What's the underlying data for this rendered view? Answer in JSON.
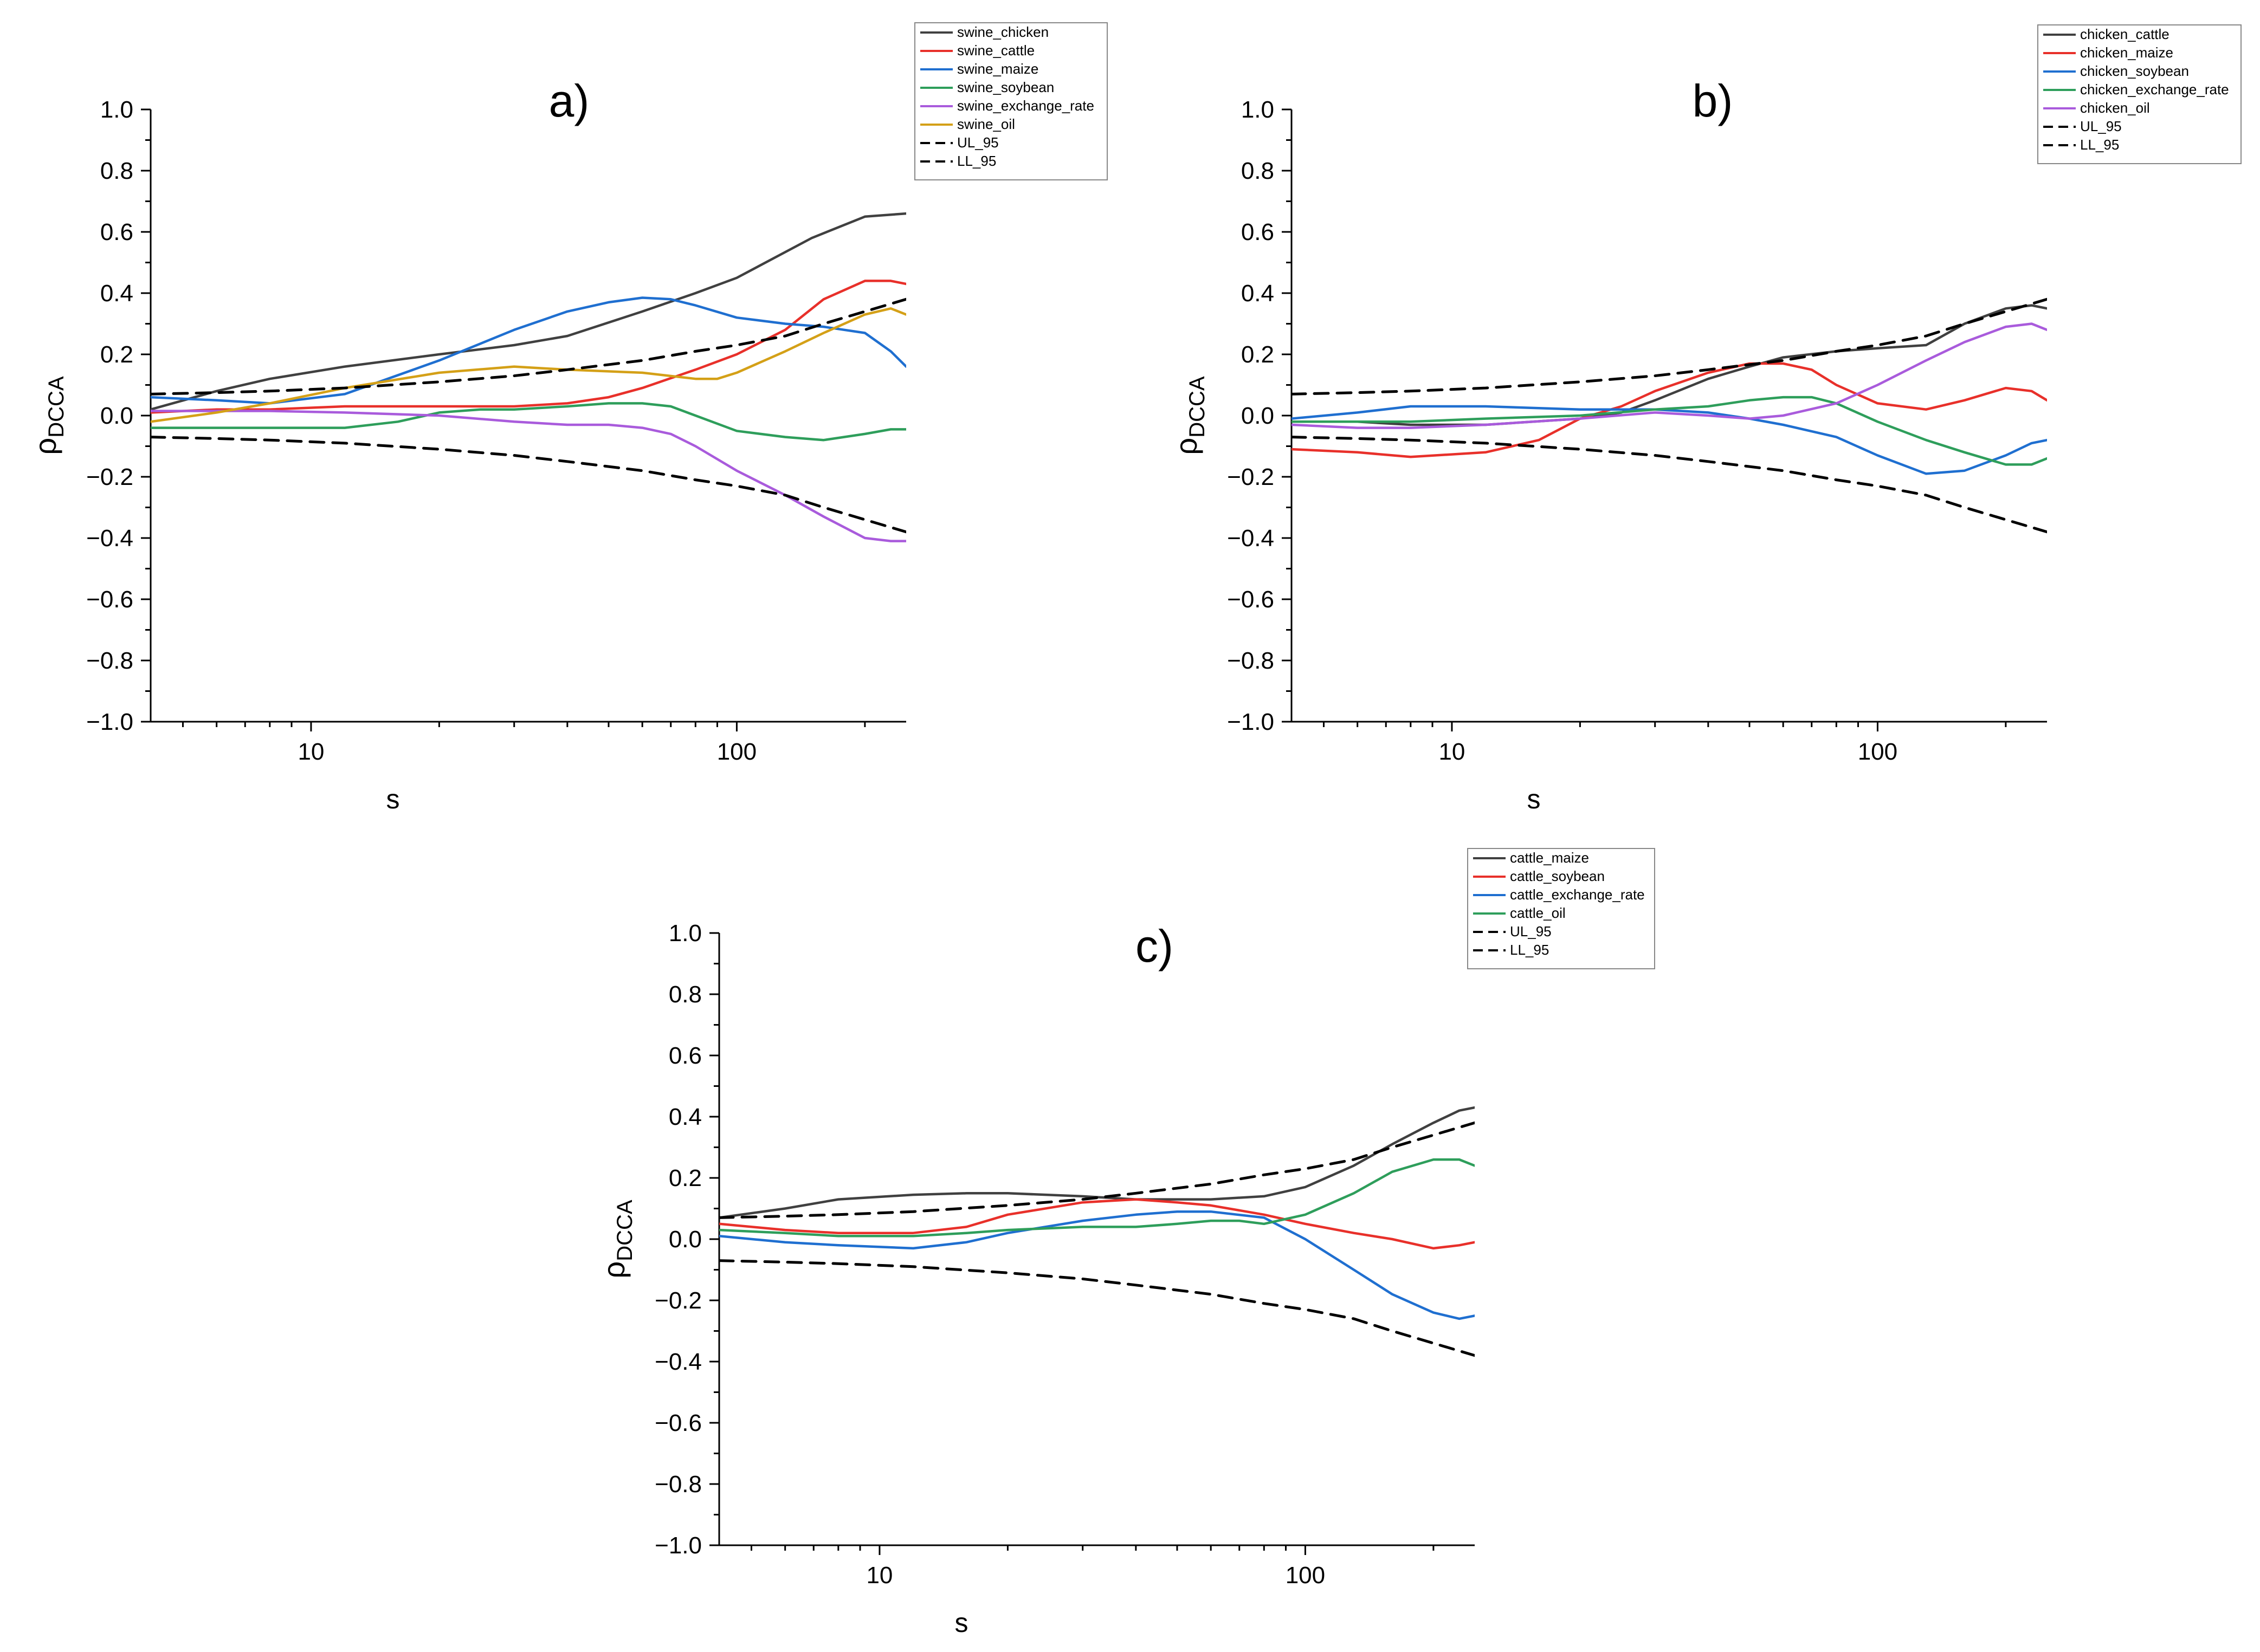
{
  "chart_data": [
    {
      "type": "line",
      "panel_label": "a)",
      "xscale": "log",
      "xlim": [
        4.2,
        250
      ],
      "ylim": [
        -1.0,
        1.0
      ],
      "x_ticks": [
        10,
        100
      ],
      "x_tick_labels": [
        "10",
        "100"
      ],
      "y_ticks": [
        -1.0,
        -0.8,
        -0.6,
        -0.4,
        -0.2,
        0.0,
        0.2,
        0.4,
        0.6,
        0.8,
        1.0
      ],
      "y_tick_labels": [
        "−1.0",
        "−0.8",
        "−0.6",
        "−0.4",
        "−0.2",
        "0.0",
        "0.2",
        "0.4",
        "0.6",
        "0.8",
        "1.0"
      ],
      "xlabel": "s",
      "ylabel_main": "ρ",
      "ylabel_sub": "DCCA",
      "legend_position": "top-right",
      "series": [
        {
          "name": "swine_chicken",
          "color": "#404040",
          "dash": false,
          "x": [
            4.2,
            6,
            8,
            12,
            20,
            30,
            40,
            60,
            80,
            100,
            150,
            200,
            250
          ],
          "y": [
            0.02,
            0.08,
            0.12,
            0.16,
            0.2,
            0.23,
            0.26,
            0.34,
            0.4,
            0.45,
            0.58,
            0.65,
            0.66
          ]
        },
        {
          "name": "swine_cattle",
          "color": "#e8302a",
          "dash": false,
          "x": [
            4.2,
            6,
            8,
            12,
            20,
            30,
            40,
            50,
            60,
            80,
            100,
            130,
            160,
            200,
            230,
            250
          ],
          "y": [
            0.01,
            0.02,
            0.02,
            0.03,
            0.03,
            0.03,
            0.04,
            0.06,
            0.09,
            0.15,
            0.2,
            0.28,
            0.38,
            0.44,
            0.44,
            0.43
          ]
        },
        {
          "name": "swine_maize",
          "color": "#1f6fd0",
          "dash": false,
          "x": [
            4.2,
            6,
            8,
            12,
            20,
            30,
            40,
            50,
            60,
            70,
            80,
            100,
            130,
            160,
            200,
            230,
            250
          ],
          "y": [
            0.06,
            0.05,
            0.04,
            0.07,
            0.18,
            0.28,
            0.34,
            0.37,
            0.385,
            0.38,
            0.36,
            0.32,
            0.3,
            0.29,
            0.27,
            0.21,
            0.16
          ]
        },
        {
          "name": "swine_soybean",
          "color": "#2e9e5b",
          "dash": false,
          "x": [
            4.2,
            6,
            8,
            12,
            16,
            20,
            25,
            30,
            40,
            50,
            60,
            70,
            80,
            100,
            130,
            160,
            200,
            230,
            250
          ],
          "y": [
            -0.04,
            -0.04,
            -0.04,
            -0.04,
            -0.02,
            0.01,
            0.02,
            0.02,
            0.03,
            0.04,
            0.04,
            0.03,
            0.0,
            -0.05,
            -0.07,
            -0.08,
            -0.06,
            -0.045,
            -0.045
          ]
        },
        {
          "name": "swine_exchange_rate",
          "color": "#a95bdc",
          "dash": false,
          "x": [
            4.2,
            6,
            8,
            12,
            20,
            30,
            40,
            50,
            60,
            70,
            80,
            100,
            130,
            160,
            200,
            230,
            250
          ],
          "y": [
            0.015,
            0.015,
            0.015,
            0.01,
            0.0,
            -0.02,
            -0.03,
            -0.03,
            -0.04,
            -0.06,
            -0.1,
            -0.18,
            -0.26,
            -0.33,
            -0.4,
            -0.41,
            -0.41
          ]
        },
        {
          "name": "swine_oil",
          "color": "#d4a017",
          "dash": false,
          "x": [
            4.2,
            6,
            8,
            12,
            20,
            30,
            40,
            60,
            80,
            90,
            100,
            130,
            160,
            200,
            230,
            250
          ],
          "y": [
            -0.02,
            0.01,
            0.04,
            0.09,
            0.14,
            0.16,
            0.15,
            0.14,
            0.12,
            0.12,
            0.14,
            0.21,
            0.27,
            0.33,
            0.35,
            0.33
          ]
        },
        {
          "name": "UL_95",
          "color": "#000000",
          "dash": true,
          "x": [
            4.2,
            6,
            8,
            12,
            20,
            30,
            40,
            60,
            80,
            100,
            130,
            160,
            200,
            250
          ],
          "y": [
            0.07,
            0.075,
            0.08,
            0.09,
            0.11,
            0.13,
            0.15,
            0.18,
            0.21,
            0.23,
            0.26,
            0.3,
            0.34,
            0.38
          ]
        },
        {
          "name": "LL_95",
          "color": "#000000",
          "dash": true,
          "x": [
            4.2,
            6,
            8,
            12,
            20,
            30,
            40,
            60,
            80,
            100,
            130,
            160,
            200,
            250
          ],
          "y": [
            -0.07,
            -0.075,
            -0.08,
            -0.09,
            -0.11,
            -0.13,
            -0.15,
            -0.18,
            -0.21,
            -0.23,
            -0.26,
            -0.3,
            -0.34,
            -0.38
          ]
        }
      ]
    },
    {
      "type": "line",
      "panel_label": "b)",
      "xscale": "log",
      "xlim": [
        4.2,
        250
      ],
      "ylim": [
        -1.0,
        1.0
      ],
      "x_ticks": [
        10,
        100
      ],
      "x_tick_labels": [
        "10",
        "100"
      ],
      "y_ticks": [
        -1.0,
        -0.8,
        -0.6,
        -0.4,
        -0.2,
        0.0,
        0.2,
        0.4,
        0.6,
        0.8,
        1.0
      ],
      "y_tick_labels": [
        "−1.0",
        "−0.8",
        "−0.6",
        "−0.4",
        "−0.2",
        "0.0",
        "0.2",
        "0.4",
        "0.6",
        "0.8",
        "1.0"
      ],
      "xlabel": "s",
      "ylabel_main": "ρ",
      "ylabel_sub": "DCCA",
      "legend_position": "top-right",
      "series": [
        {
          "name": "chicken_cattle",
          "color": "#404040",
          "dash": false,
          "x": [
            4.2,
            6,
            8,
            12,
            20,
            25,
            30,
            40,
            50,
            60,
            80,
            100,
            130,
            160,
            200,
            230,
            250
          ],
          "y": [
            -0.02,
            -0.02,
            -0.03,
            -0.03,
            -0.01,
            0.01,
            0.05,
            0.12,
            0.16,
            0.19,
            0.21,
            0.22,
            0.23,
            0.3,
            0.35,
            0.36,
            0.35
          ]
        },
        {
          "name": "chicken_maize",
          "color": "#e8302a",
          "dash": false,
          "x": [
            4.2,
            6,
            8,
            12,
            16,
            20,
            25,
            30,
            40,
            50,
            60,
            70,
            80,
            100,
            130,
            160,
            200,
            230,
            250
          ],
          "y": [
            -0.11,
            -0.12,
            -0.135,
            -0.12,
            -0.08,
            -0.01,
            0.03,
            0.08,
            0.14,
            0.17,
            0.17,
            0.15,
            0.1,
            0.04,
            0.02,
            0.05,
            0.09,
            0.08,
            0.05
          ]
        },
        {
          "name": "chicken_soybean",
          "color": "#1f6fd0",
          "dash": false,
          "x": [
            4.2,
            6,
            8,
            12,
            20,
            30,
            40,
            50,
            60,
            80,
            100,
            130,
            160,
            200,
            230,
            250
          ],
          "y": [
            -0.01,
            0.01,
            0.03,
            0.03,
            0.02,
            0.02,
            0.01,
            -0.01,
            -0.03,
            -0.07,
            -0.13,
            -0.19,
            -0.18,
            -0.13,
            -0.09,
            -0.08
          ]
        },
        {
          "name": "chicken_exchange_rate",
          "color": "#2e9e5b",
          "dash": false,
          "x": [
            4.2,
            6,
            8,
            12,
            20,
            30,
            40,
            50,
            60,
            70,
            80,
            100,
            130,
            160,
            200,
            230,
            250
          ],
          "y": [
            -0.02,
            -0.02,
            -0.02,
            -0.01,
            0.0,
            0.02,
            0.03,
            0.05,
            0.06,
            0.06,
            0.04,
            -0.02,
            -0.08,
            -0.12,
            -0.16,
            -0.16,
            -0.14
          ]
        },
        {
          "name": "chicken_oil",
          "color": "#a95bdc",
          "dash": false,
          "x": [
            4.2,
            6,
            8,
            12,
            20,
            30,
            40,
            50,
            60,
            80,
            100,
            130,
            160,
            200,
            230,
            250
          ],
          "y": [
            -0.03,
            -0.04,
            -0.04,
            -0.03,
            -0.01,
            0.01,
            0.0,
            -0.01,
            0.0,
            0.04,
            0.1,
            0.18,
            0.24,
            0.29,
            0.3,
            0.28
          ]
        },
        {
          "name": "UL_95",
          "color": "#000000",
          "dash": true,
          "x": [
            4.2,
            6,
            8,
            12,
            20,
            30,
            40,
            60,
            80,
            100,
            130,
            160,
            200,
            250
          ],
          "y": [
            0.07,
            0.075,
            0.08,
            0.09,
            0.11,
            0.13,
            0.15,
            0.18,
            0.21,
            0.23,
            0.26,
            0.3,
            0.34,
            0.38
          ]
        },
        {
          "name": "LL_95",
          "color": "#000000",
          "dash": true,
          "x": [
            4.2,
            6,
            8,
            12,
            20,
            30,
            40,
            60,
            80,
            100,
            130,
            160,
            200,
            250
          ],
          "y": [
            -0.07,
            -0.075,
            -0.08,
            -0.09,
            -0.11,
            -0.13,
            -0.15,
            -0.18,
            -0.21,
            -0.23,
            -0.26,
            -0.3,
            -0.34,
            -0.38
          ]
        }
      ]
    },
    {
      "type": "line",
      "panel_label": "c)",
      "xscale": "log",
      "xlim": [
        4.2,
        250
      ],
      "ylim": [
        -1.0,
        1.0
      ],
      "x_ticks": [
        10,
        100
      ],
      "x_tick_labels": [
        "10",
        "100"
      ],
      "y_ticks": [
        -1.0,
        -0.8,
        -0.6,
        -0.4,
        -0.2,
        0.0,
        0.2,
        0.4,
        0.6,
        0.8,
        1.0
      ],
      "y_tick_labels": [
        "−1.0",
        "−0.8",
        "−0.6",
        "−0.4",
        "−0.2",
        "0.0",
        "0.2",
        "0.4",
        "0.6",
        "0.8",
        "1.0"
      ],
      "xlabel": "s",
      "ylabel_main": "ρ",
      "ylabel_sub": "DCCA",
      "legend_position": "top-right",
      "series": [
        {
          "name": "cattle_maize",
          "color": "#404040",
          "dash": false,
          "x": [
            4.2,
            6,
            8,
            12,
            16,
            20,
            30,
            40,
            50,
            60,
            80,
            100,
            130,
            160,
            200,
            230,
            250
          ],
          "y": [
            0.07,
            0.1,
            0.13,
            0.145,
            0.15,
            0.15,
            0.14,
            0.13,
            0.13,
            0.13,
            0.14,
            0.17,
            0.24,
            0.31,
            0.38,
            0.42,
            0.43
          ]
        },
        {
          "name": "cattle_soybean",
          "color": "#e8302a",
          "dash": false,
          "x": [
            4.2,
            6,
            8,
            12,
            16,
            20,
            30,
            40,
            50,
            60,
            80,
            100,
            130,
            160,
            200,
            230,
            250
          ],
          "y": [
            0.05,
            0.03,
            0.02,
            0.02,
            0.04,
            0.08,
            0.12,
            0.13,
            0.12,
            0.11,
            0.08,
            0.05,
            0.02,
            0.0,
            -0.03,
            -0.02,
            -0.01
          ]
        },
        {
          "name": "cattle_exchange_rate",
          "color": "#1f6fd0",
          "dash": false,
          "x": [
            4.2,
            6,
            8,
            12,
            16,
            20,
            30,
            40,
            50,
            60,
            80,
            100,
            130,
            160,
            200,
            230,
            250
          ],
          "y": [
            0.01,
            -0.01,
            -0.02,
            -0.03,
            -0.01,
            0.02,
            0.06,
            0.08,
            0.09,
            0.09,
            0.07,
            0.0,
            -0.1,
            -0.18,
            -0.24,
            -0.26,
            -0.25
          ]
        },
        {
          "name": "cattle_oil",
          "color": "#2e9e5b",
          "dash": false,
          "x": [
            4.2,
            6,
            8,
            12,
            16,
            20,
            30,
            40,
            50,
            60,
            70,
            80,
            100,
            130,
            160,
            200,
            230,
            250
          ],
          "y": [
            0.03,
            0.02,
            0.01,
            0.01,
            0.02,
            0.03,
            0.04,
            0.04,
            0.05,
            0.06,
            0.06,
            0.05,
            0.08,
            0.15,
            0.22,
            0.26,
            0.26,
            0.24
          ]
        },
        {
          "name": "UL_95",
          "color": "#000000",
          "dash": true,
          "x": [
            4.2,
            6,
            8,
            12,
            20,
            30,
            40,
            60,
            80,
            100,
            130,
            160,
            200,
            250
          ],
          "y": [
            0.07,
            0.075,
            0.08,
            0.09,
            0.11,
            0.13,
            0.15,
            0.18,
            0.21,
            0.23,
            0.26,
            0.3,
            0.34,
            0.38
          ]
        },
        {
          "name": "LL_95",
          "color": "#000000",
          "dash": true,
          "x": [
            4.2,
            6,
            8,
            12,
            20,
            30,
            40,
            60,
            80,
            100,
            130,
            160,
            200,
            250
          ],
          "y": [
            -0.07,
            -0.075,
            -0.08,
            -0.09,
            -0.11,
            -0.13,
            -0.15,
            -0.18,
            -0.21,
            -0.23,
            -0.26,
            -0.3,
            -0.34,
            -0.38
          ]
        }
      ]
    }
  ]
}
